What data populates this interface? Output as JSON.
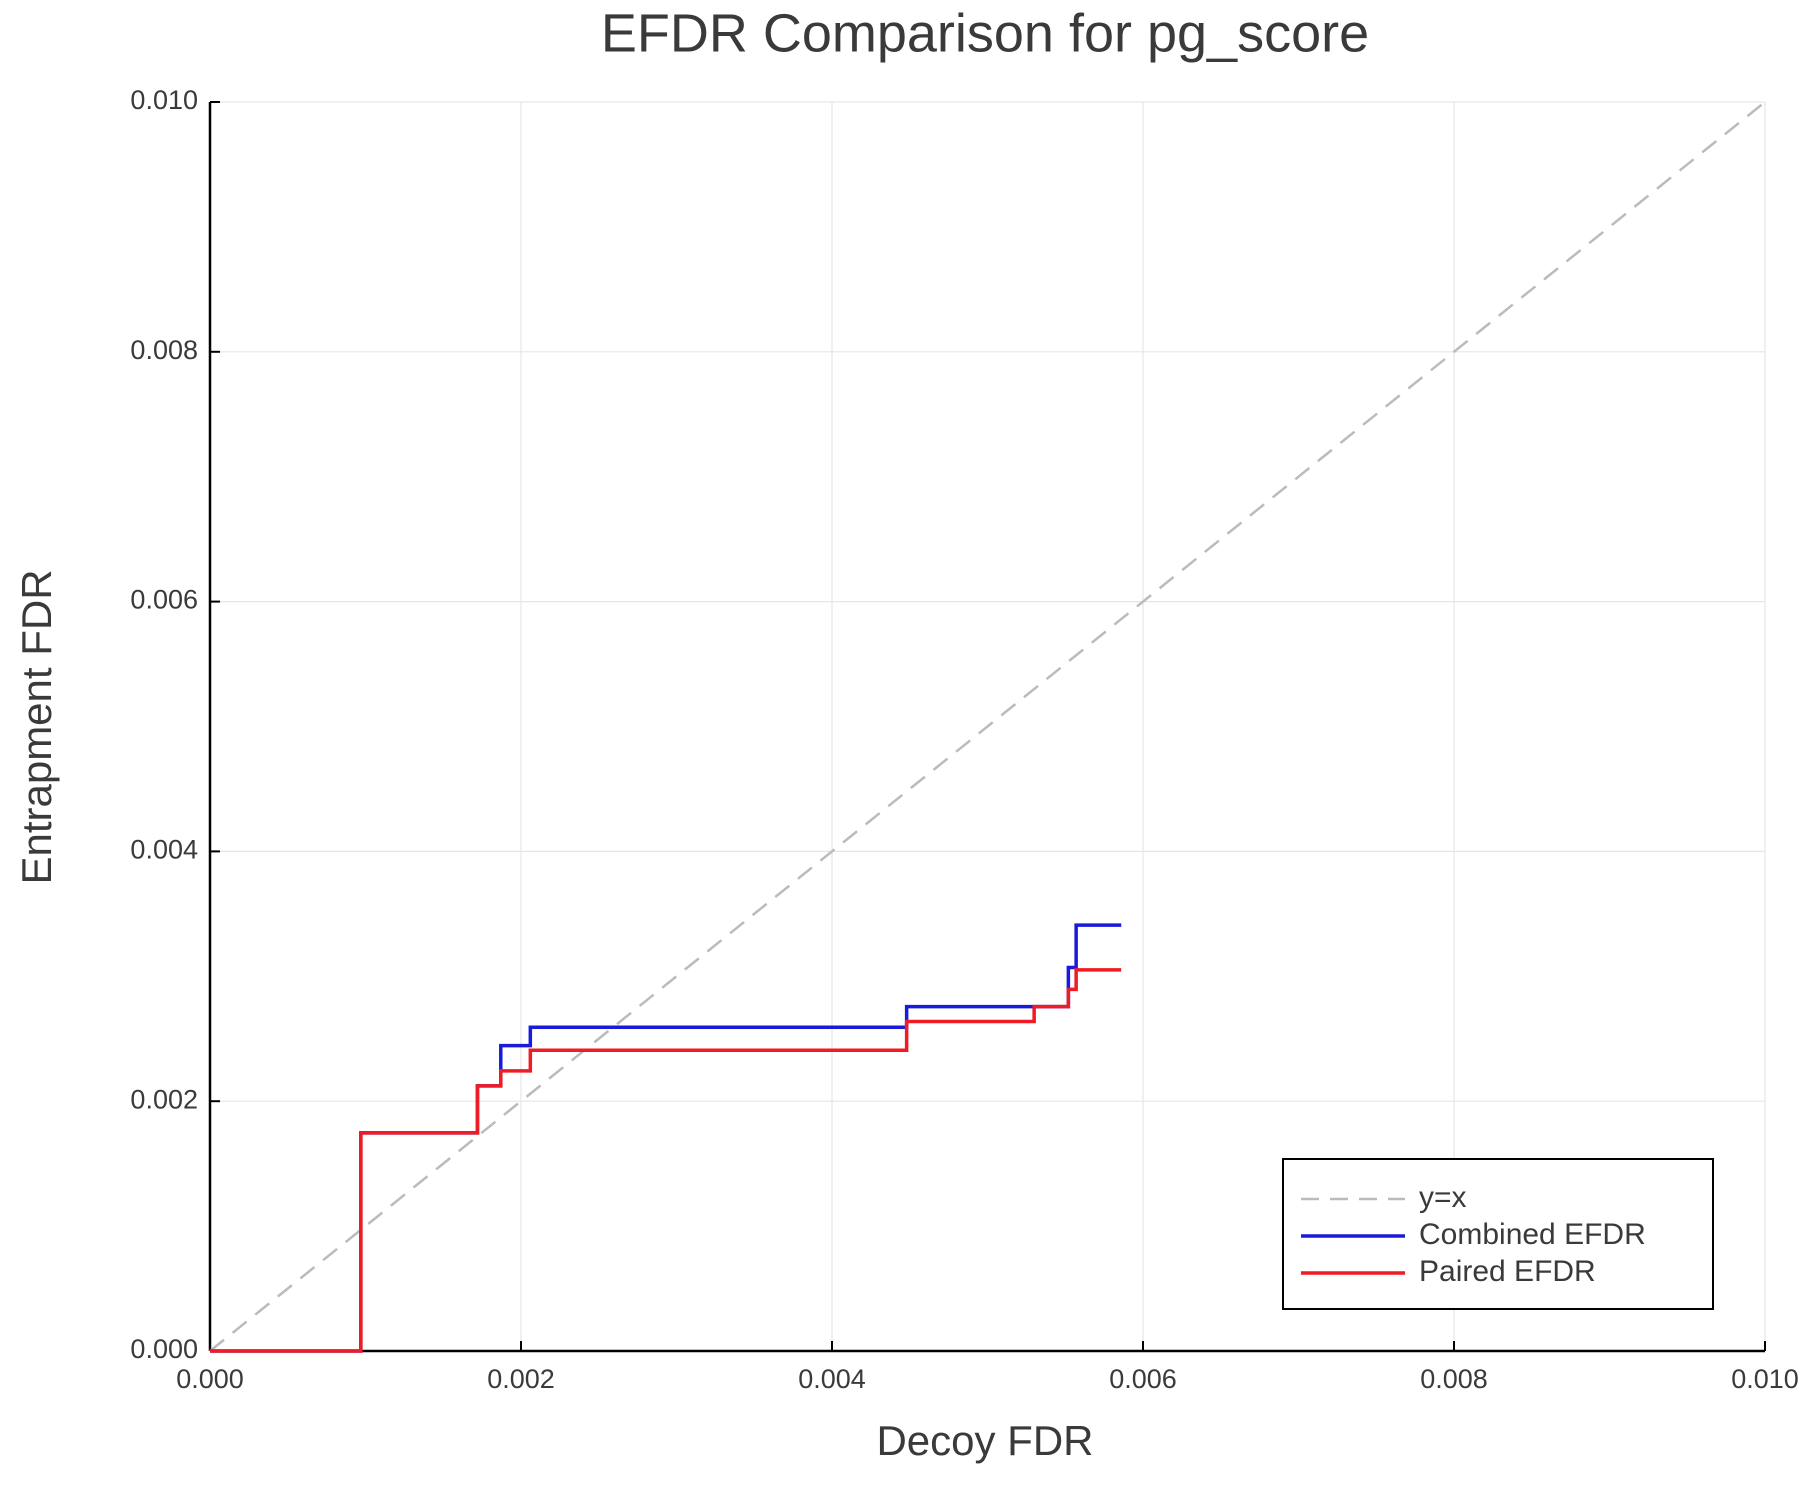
{
  "chart_data": {
    "type": "line",
    "title": "EFDR Comparison for pg_score",
    "xlabel": "Decoy FDR",
    "ylabel": "Entrapment FDR",
    "xlim": [
      0,
      0.01
    ],
    "ylim": [
      0,
      0.01
    ],
    "xticks": [
      {
        "value": 0,
        "label": "0.000"
      },
      {
        "value": 0.002,
        "label": "0.002"
      },
      {
        "value": 0.004,
        "label": "0.004"
      },
      {
        "value": 0.006,
        "label": "0.006"
      },
      {
        "value": 0.008,
        "label": "0.008"
      },
      {
        "value": 0.01,
        "label": "0.010"
      }
    ],
    "yticks": [
      {
        "value": 0,
        "label": "0.000"
      },
      {
        "value": 0.002,
        "label": "0.002"
      },
      {
        "value": 0.004,
        "label": "0.004"
      },
      {
        "value": 0.006,
        "label": "0.006"
      },
      {
        "value": 0.008,
        "label": "0.008"
      },
      {
        "value": 0.01,
        "label": "0.010"
      }
    ],
    "grid": true,
    "legend": "bottom-right",
    "series": [
      {
        "name": "y=x",
        "color": "#bbbbbb",
        "dash": true,
        "x": [
          0,
          0.01
        ],
        "values": [
          0,
          0.01
        ]
      },
      {
        "name": "Combined EFDR",
        "color": "#1a1adb",
        "dash": false,
        "x": [
          0,
          0.00097,
          0.00097,
          0.00172,
          0.00172,
          0.00187,
          0.00187,
          0.00206,
          0.00206,
          0.00448,
          0.00448,
          0.00552,
          0.00552,
          0.00557,
          0.00557,
          0.00586
        ],
        "values": [
          0,
          0,
          0.001746,
          0.001746,
          0.002123,
          0.002123,
          0.002445,
          0.002445,
          0.002592,
          0.002592,
          0.002757,
          0.002757,
          0.00307,
          0.00307,
          0.00341,
          0.00341
        ]
      },
      {
        "name": "Paired EFDR",
        "color": "#ee1c24",
        "dash": false,
        "x": [
          0,
          0.00097,
          0.00097,
          0.00172,
          0.00172,
          0.00187,
          0.00187,
          0.00206,
          0.00206,
          0.00448,
          0.00448,
          0.0053,
          0.0053,
          0.00552,
          0.00552,
          0.00557,
          0.00557,
          0.00586
        ],
        "values": [
          0,
          0,
          0.001746,
          0.001746,
          0.002123,
          0.002123,
          0.002243,
          0.002243,
          0.002408,
          0.002408,
          0.002638,
          0.002638,
          0.002757,
          0.002757,
          0.002895,
          0.002895,
          0.003051,
          0.003051
        ]
      }
    ]
  }
}
